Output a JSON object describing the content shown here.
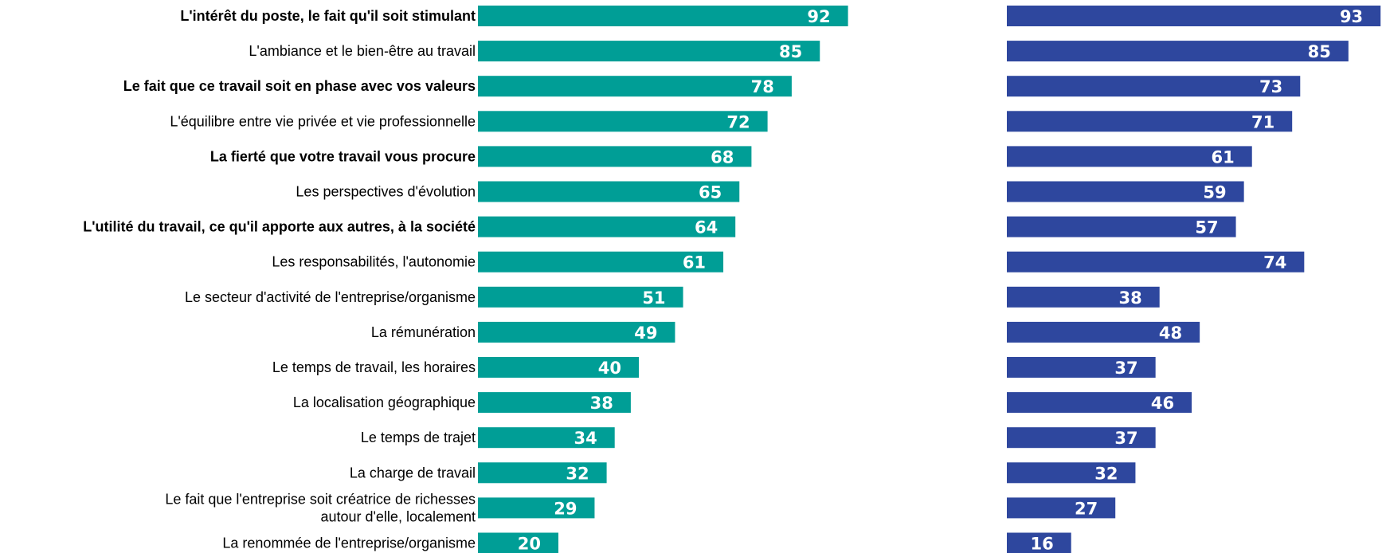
{
  "colors": {
    "series_left": "#009E96",
    "series_right": "#2E479E"
  },
  "chart_data": {
    "type": "bar",
    "orientation": "horizontal",
    "categories": [
      "L'intérêt du poste, le fait qu'il soit stimulant",
      "L'ambiance et le bien-être au travail",
      "Le fait que ce travail soit en phase avec vos valeurs",
      "L'équilibre entre vie privée et vie professionnelle",
      "La fierté que votre travail vous procure",
      "Les perspectives d'évolution",
      "L'utilité du travail, ce qu'il apporte aux autres, à la société",
      "Les responsabilités, l'autonomie",
      "Le secteur d'activité de l'entreprise/organisme",
      "La rémunération",
      "Le temps de travail, les horaires",
      "La localisation géographique",
      "Le temps de trajet",
      "La charge de travail",
      [
        "Le fait que l'entreprise soit créatrice de richesses",
        "autour d'elle, localement"
      ],
      "La renommée de l'entreprise/organisme"
    ],
    "bold_categories": [
      0,
      2,
      4,
      6
    ],
    "series": [
      {
        "values": [
          92,
          85,
          78,
          72,
          68,
          65,
          64,
          61,
          51,
          49,
          40,
          38,
          34,
          32,
          29,
          20
        ]
      },
      {
        "values": [
          93,
          85,
          73,
          71,
          61,
          59,
          57,
          74,
          38,
          48,
          37,
          46,
          37,
          32,
          27,
          16
        ]
      }
    ],
    "xlim": [
      0,
      100
    ]
  }
}
